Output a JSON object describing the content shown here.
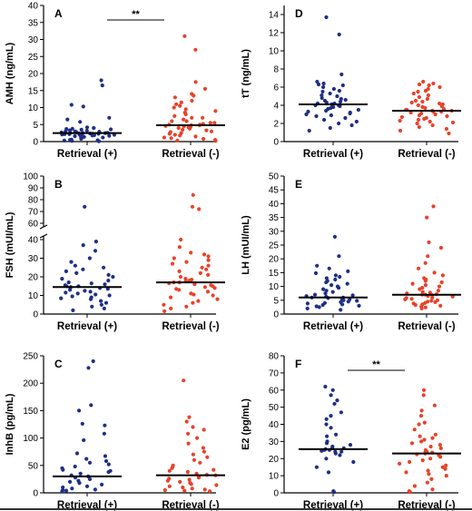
{
  "colors": {
    "retrieval_pos": "#1f2f86",
    "retrieval_neg": "#e8422a"
  },
  "chart_data": [
    {
      "type": "scatter",
      "panel": "A",
      "ylabel": "AMH (ng/mL)",
      "ylim": [
        0,
        40
      ],
      "yticks": [
        0,
        5,
        10,
        15,
        20,
        25,
        30,
        35,
        40
      ],
      "categories": [
        "Retrieval (+)",
        "Retrieval (-)"
      ],
      "medians": [
        2.5,
        4.8
      ],
      "significance": "**",
      "series": [
        {
          "values": [
            18,
            16.5,
            10.8,
            10.3,
            7,
            6.5,
            5.8,
            4.2,
            4,
            3.8,
            3.7,
            3.6,
            3.5,
            3.3,
            3.2,
            3,
            3,
            2.9,
            2.8,
            2.7,
            2.7,
            2.6,
            2.6,
            2.5,
            2.5,
            2.5,
            2.4,
            2.4,
            2.3,
            2.3,
            2.2,
            2.2,
            2.1,
            2.1,
            2,
            2,
            1.9,
            1.8,
            1.7,
            1.6,
            1.5,
            1.4,
            1.3,
            1.2,
            1,
            0.8,
            0.6,
            0.5,
            0.4,
            0.3,
            0.2,
            0.1
          ]
        },
        {
          "values": [
            31,
            27,
            17.5,
            15.5,
            14,
            13.5,
            13,
            12,
            11.5,
            11,
            10.5,
            10,
            9.5,
            9,
            8.5,
            8,
            7.5,
            7,
            7,
            6.5,
            6,
            6,
            5.5,
            5.5,
            5.2,
            5,
            5,
            4.8,
            4.8,
            4.6,
            4.5,
            4.3,
            4.2,
            4,
            3.8,
            3.5,
            3.3,
            3,
            2.8,
            2.5,
            2.3,
            2,
            1.8,
            1.5,
            1.2,
            1,
            0.8,
            0.5,
            0.3,
            0.2
          ]
        }
      ]
    },
    {
      "type": "scatter",
      "panel": "D",
      "ylabel": "tT (ng/mL)",
      "ylim": [
        0,
        15
      ],
      "yticks": [
        0,
        2,
        4,
        6,
        8,
        10,
        12,
        14
      ],
      "categories": [
        "Retrieval (+)",
        "Retrieval (-)"
      ],
      "medians": [
        4.1,
        3.4
      ],
      "series": [
        {
          "values": [
            13.7,
            11.8,
            7.4,
            6.6,
            6.4,
            6.3,
            6.2,
            6.0,
            5.8,
            5.6,
            5.5,
            5.3,
            5.1,
            5.0,
            4.8,
            4.7,
            4.6,
            4.5,
            4.4,
            4.3,
            4.2,
            4.2,
            4.1,
            4.0,
            4.0,
            3.9,
            3.8,
            3.7,
            3.6,
            3.5,
            3.4,
            3.3,
            3.2,
            3.1,
            3.0,
            2.9,
            2.8,
            2.6,
            2.4,
            2.2,
            2.0,
            1.8,
            1.5,
            1.2
          ]
        },
        {
          "values": [
            6.6,
            6.4,
            6.3,
            6.2,
            6.0,
            5.8,
            5.6,
            5.5,
            5.3,
            5.1,
            4.9,
            4.7,
            4.5,
            4.4,
            4.3,
            4.2,
            4.1,
            4.0,
            3.9,
            3.8,
            3.7,
            3.6,
            3.5,
            3.5,
            3.4,
            3.4,
            3.3,
            3.3,
            3.2,
            3.1,
            3.0,
            2.9,
            2.8,
            2.7,
            2.6,
            2.5,
            2.4,
            2.3,
            2.2,
            2.1,
            2.0,
            1.8,
            1.6,
            1.4,
            1.2,
            0.9
          ]
        }
      ]
    },
    {
      "type": "scatter",
      "panel": "B",
      "ylabel": "FSH (mUI/mL)",
      "ylim": [
        0,
        100
      ],
      "axis_break": [
        40,
        60
      ],
      "yticks": [
        0,
        10,
        20,
        30,
        40,
        60,
        70,
        80,
        90,
        100
      ],
      "categories": [
        "Retrieval (+)",
        "Retrieval (-)"
      ],
      "medians": [
        14.5,
        17
      ],
      "series": [
        {
          "values": [
            74,
            39,
            37,
            34,
            30,
            28,
            26,
            25,
            24,
            23,
            22,
            21,
            20,
            19,
            18,
            17,
            16.5,
            16,
            15.5,
            15,
            15,
            14.5,
            14,
            14,
            13.5,
            13,
            12.5,
            12,
            11.5,
            11,
            10.5,
            10,
            9.5,
            9,
            8.5,
            8,
            7,
            6,
            5,
            4,
            3,
            2
          ]
        },
        {
          "values": [
            84,
            74,
            72,
            40,
            36,
            33,
            32,
            31,
            30,
            29,
            28,
            27,
            26,
            25,
            24,
            23,
            22,
            21,
            20,
            19,
            18.5,
            18,
            17.5,
            17,
            17,
            16.5,
            16,
            15.5,
            15,
            14.5,
            14,
            13.5,
            13,
            12,
            11,
            10.5,
            10,
            9,
            8,
            7,
            6,
            5,
            4,
            3,
            1.5
          ]
        }
      ]
    },
    {
      "type": "scatter",
      "panel": "E",
      "ylabel": "LH (mUI/mL)",
      "ylim": [
        0,
        50
      ],
      "yticks": [
        0,
        5,
        10,
        15,
        20,
        25,
        30,
        35,
        40,
        45,
        50
      ],
      "categories": [
        "Retrieval (+)",
        "Retrieval (-)"
      ],
      "medians": [
        6,
        7
      ],
      "series": [
        {
          "values": [
            28,
            21,
            17.5,
            16.5,
            15.5,
            14.8,
            14,
            13.5,
            13,
            12.5,
            12,
            11.5,
            11,
            10.5,
            10,
            9.5,
            9,
            8.5,
            8,
            7.5,
            7,
            6.8,
            6.5,
            6.3,
            6,
            6,
            5.8,
            5.5,
            5.3,
            5,
            4.8,
            4.5,
            4.3,
            4,
            3.8,
            3.5,
            3.3,
            3,
            2.8,
            2.5,
            2,
            1.5
          ]
        },
        {
          "values": [
            39,
            35,
            26,
            24,
            21,
            18.5,
            16.5,
            15,
            14,
            13,
            12.5,
            12,
            11.5,
            11,
            10.5,
            10,
            9.5,
            9,
            8.5,
            8,
            7.8,
            7.5,
            7.2,
            7,
            7,
            6.8,
            6.5,
            6.3,
            6,
            5.8,
            5.5,
            5.3,
            5,
            4.8,
            4.5,
            4.3,
            4,
            3.8,
            3.5,
            3.3,
            3,
            2.7,
            2.4,
            2
          ]
        }
      ]
    },
    {
      "type": "scatter",
      "panel": "C",
      "ylabel": "InhB (pg/mL)",
      "ylim": [
        0,
        250
      ],
      "yticks": [
        0,
        50,
        100,
        150,
        200,
        250
      ],
      "categories": [
        "Retrieval (+)",
        "Retrieval (-)"
      ],
      "medians": [
        30,
        32
      ],
      "series": [
        {
          "values": [
            240,
            228,
            160,
            150,
            126,
            123,
            108,
            96,
            72,
            67,
            62,
            58,
            55,
            52,
            48,
            45,
            42,
            40,
            38,
            35,
            32,
            30,
            28,
            25,
            22,
            20,
            18,
            15,
            12,
            10,
            8,
            6,
            5,
            4,
            3
          ]
        },
        {
          "values": [
            205,
            138,
            130,
            120,
            115,
            108,
            100,
            90,
            82,
            75,
            70,
            65,
            60,
            55,
            50,
            48,
            45,
            42,
            40,
            38,
            35,
            33,
            32,
            30,
            28,
            26,
            24,
            22,
            20,
            18,
            16,
            14,
            12,
            10,
            8,
            6,
            5,
            4,
            3
          ]
        }
      ]
    },
    {
      "type": "scatter",
      "panel": "F",
      "ylabel": "E2 (pg/mL)",
      "ylim": [
        0,
        80
      ],
      "yticks": [
        0,
        10,
        20,
        30,
        40,
        50,
        60,
        70,
        80
      ],
      "categories": [
        "Retrieval (+)",
        "Retrieval (-)"
      ],
      "medians": [
        25.5,
        23
      ],
      "significance": "**",
      "series": [
        {
          "values": [
            62,
            60,
            57,
            54,
            52,
            47,
            45,
            43,
            40,
            38,
            34,
            33,
            30,
            29,
            28,
            27,
            26,
            26,
            25.5,
            25,
            25,
            24.5,
            24,
            24,
            23,
            22,
            20,
            18,
            15,
            12,
            1,
            0.5
          ]
        },
        {
          "values": [
            60,
            57,
            51,
            48,
            45,
            41,
            40,
            37,
            34,
            33,
            32,
            31,
            30,
            29,
            28,
            27,
            26,
            25,
            24,
            24,
            23.5,
            23,
            22.5,
            22,
            21,
            20,
            19,
            18,
            17,
            16,
            15,
            14,
            13,
            12,
            11,
            10,
            8,
            6,
            4,
            2,
            1,
            0.5
          ]
        }
      ]
    }
  ]
}
